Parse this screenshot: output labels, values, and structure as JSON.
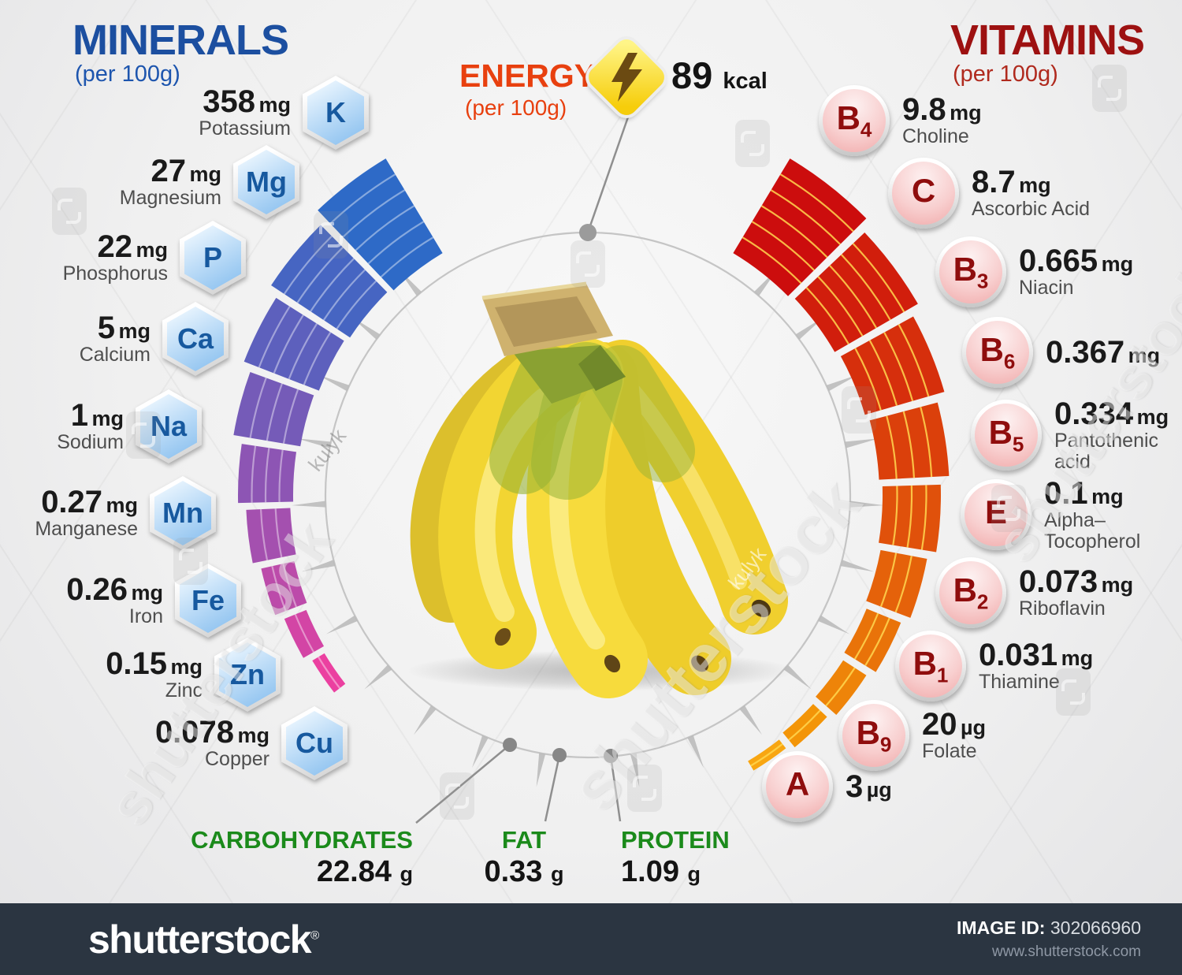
{
  "titles": {
    "minerals": "MINERALS",
    "minerals_sub": "(per 100g)",
    "vitamins": "VITAMINS",
    "vitamins_sub": "(per 100g)"
  },
  "energy": {
    "label": "ENERGY",
    "sub": "(per 100g)",
    "value": "89",
    "unit": "kcal"
  },
  "chart_data": {
    "type": "circular-gauge-infographic",
    "title": "Vitamins and minerals of banana (per 100g)",
    "energy_kcal": 89,
    "minerals": [
      {
        "symbol": "K",
        "name": "Potassium",
        "value": "358",
        "unit": "mg",
        "color": "#2e6ac7"
      },
      {
        "symbol": "Mg",
        "name": "Magnesium",
        "value": "27",
        "unit": "mg",
        "color": "#4665c2"
      },
      {
        "symbol": "P",
        "name": "Phosphorus",
        "value": "22",
        "unit": "mg",
        "color": "#5d60bd"
      },
      {
        "symbol": "Ca",
        "name": "Calcium",
        "value": "5",
        "unit": "mg",
        "color": "#755bb8"
      },
      {
        "symbol": "Na",
        "name": "Sodium",
        "value": "1",
        "unit": "mg",
        "color": "#8d55b4"
      },
      {
        "symbol": "Mn",
        "name": "Manganese",
        "value": "0.27",
        "unit": "mg",
        "color": "#a450af"
      },
      {
        "symbol": "Fe",
        "name": "Iron",
        "value": "0.26",
        "unit": "mg",
        "color": "#bc4baa"
      },
      {
        "symbol": "Zn",
        "name": "Zinc",
        "value": "0.15",
        "unit": "mg",
        "color": "#d345a5"
      },
      {
        "symbol": "Cu",
        "name": "Copper",
        "value": "0.078",
        "unit": "mg",
        "color": "#eb40a0"
      }
    ],
    "vitamins": [
      {
        "symbol": "B",
        "sub": "4",
        "name": "Choline",
        "value": "9.8",
        "unit": "mg",
        "color": "#cc0d0d"
      },
      {
        "symbol": "C",
        "sub": "",
        "name": "Ascorbic Acid",
        "value": "8.7",
        "unit": "mg",
        "color": "#d11e0c"
      },
      {
        "symbol": "B",
        "sub": "3",
        "name": "Niacin",
        "value": "0.665",
        "unit": "mg",
        "color": "#d62f0c"
      },
      {
        "symbol": "B",
        "sub": "6",
        "name": "",
        "value": "0.367",
        "unit": "mg",
        "color": "#db400b"
      },
      {
        "symbol": "B",
        "sub": "5",
        "name": "Pantothenic acid",
        "value": "0.334",
        "unit": "mg",
        "color": "#e0510b"
      },
      {
        "symbol": "E",
        "sub": "",
        "name": "Alpha–Tocopherol",
        "value": "0.1",
        "unit": "mg",
        "color": "#e5620a"
      },
      {
        "symbol": "B",
        "sub": "2",
        "name": "Riboflavin",
        "value": "0.073",
        "unit": "mg",
        "color": "#e97309"
      },
      {
        "symbol": "B",
        "sub": "1",
        "name": "Thiamine",
        "value": "0.031",
        "unit": "mg",
        "color": "#ee8409"
      },
      {
        "symbol": "B",
        "sub": "9",
        "name": "Folate",
        "value": "20",
        "unit": "µg",
        "color": "#f39508"
      },
      {
        "symbol": "A",
        "sub": "",
        "name": "",
        "value": "3",
        "unit": "µg",
        "color": "#f8a612"
      }
    ],
    "macronutrients": [
      {
        "name": "CARBOHYDRATES",
        "value": "22.84",
        "unit": "g"
      },
      {
        "name": "FAT",
        "value": "0.33",
        "unit": "g"
      },
      {
        "name": "PROTEIN",
        "value": "1.09",
        "unit": "g"
      }
    ],
    "stripe_colors": {
      "minerals": "rgba(255,255,255,0.42)",
      "vitamins": "rgba(255,215,80,0.85)"
    },
    "accent_colors": {
      "minerals_title": "#1c4fa0",
      "vitamins_title": "#9d1111",
      "energy": "#e8400f",
      "macros": "#1b8a1b"
    }
  },
  "footer": {
    "brand": "shutterstock",
    "reg": "®",
    "image_id_label": "IMAGE ID:",
    "image_id": "302066960",
    "site": "www.shutterstock.com"
  },
  "watermark": {
    "artist": "kulyk"
  }
}
